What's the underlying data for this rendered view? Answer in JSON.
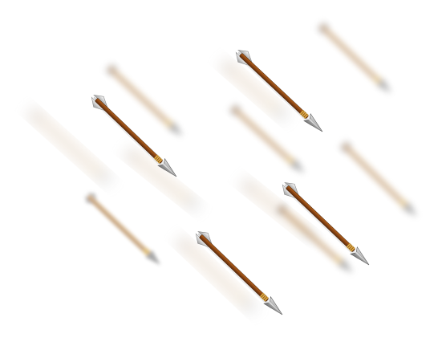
{
  "scene": {
    "background": "#ffffff",
    "subject": "arrows",
    "sharp_arrow_count": 4,
    "blurred_arrow_count": 11,
    "colors": {
      "shaft_dark": "#6b3510",
      "shaft_mid": "#8b4513",
      "shaft_light": "#b5651d",
      "binding": "#e0b24a",
      "head_light": "#d8d8d8",
      "head_dark": "#7a7a7a",
      "fletching_light": "#f2f2f2",
      "fletching_dark": "#9a9a9a",
      "blur_shaft": "#c9a57a",
      "blur_head": "#9a9a9a"
    }
  }
}
